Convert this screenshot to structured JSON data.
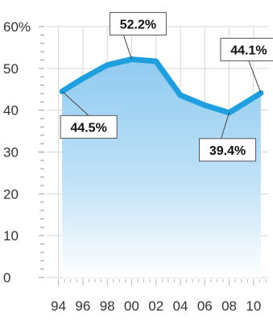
{
  "chart_data": {
    "type": "area",
    "x": [
      "94",
      "96",
      "98",
      "00",
      "02",
      "04",
      "06",
      "08",
      "10"
    ],
    "x_values": [
      1994,
      1996,
      1998,
      2000,
      2002,
      2004,
      2006,
      2008,
      2010
    ],
    "xlim": [
      1993.3,
      2011.2
    ],
    "ylim": [
      0,
      60
    ],
    "yticks": [
      0,
      10,
      20,
      30,
      40,
      50,
      60
    ],
    "ytick_labels": [
      "0",
      "10",
      "20",
      "30",
      "40",
      "50",
      "60%"
    ],
    "grid": true,
    "series": [
      {
        "points": [
          {
            "x": 1994.3,
            "y": 44.5
          },
          {
            "x": 1996.0,
            "y": 47.6
          },
          {
            "x": 1998.0,
            "y": 50.8
          },
          {
            "x": 2000.0,
            "y": 52.2
          },
          {
            "x": 2002.0,
            "y": 51.7
          },
          {
            "x": 2004.0,
            "y": 43.6
          },
          {
            "x": 2006.0,
            "y": 41.2
          },
          {
            "x": 2008.0,
            "y": 39.4
          },
          {
            "x": 2010.6,
            "y": 44.1
          }
        ]
      }
    ],
    "annotations": [
      {
        "label": "44.5%",
        "x": 1994.3,
        "y": 44.5,
        "position": "below"
      },
      {
        "label": "52.2%",
        "x": 2000.0,
        "y": 52.2,
        "position": "above"
      },
      {
        "label": "39.4%",
        "x": 2008.0,
        "y": 39.4,
        "position": "below"
      },
      {
        "label": "44.1%",
        "x": 2010.6,
        "y": 44.1,
        "position": "above"
      }
    ],
    "colors": {
      "line": "#1f9fde",
      "area_top": "#8fcaf0",
      "area_bottom": "#ffffff",
      "grid": "#d6d6d6",
      "axis_text": "#333333"
    }
  }
}
